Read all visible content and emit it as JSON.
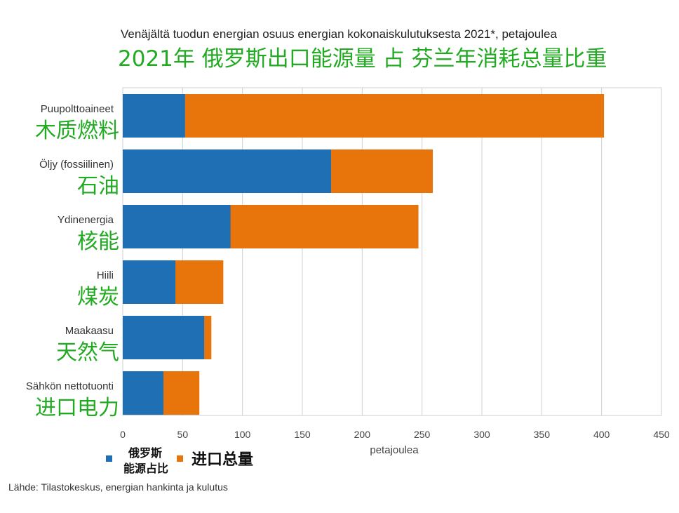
{
  "title_fi": "Venäjältä tuodun energian osuus energian kokonaiskulutuksesta  2021*, petajoulea",
  "title_zh": "2021年 俄罗斯出口能源量 占 芬兰年消耗总量比重",
  "source": "Lähde: Tilastokeskus, energian hankinta ja kulutus",
  "colors": {
    "russia": "#1f6fb4",
    "total": "#e8740c",
    "label_green": "#22aa22"
  },
  "chart_data": {
    "type": "bar",
    "orientation": "horizontal",
    "overlay": true,
    "title": "Venäjältä tuodun energian osuus energian kokonaiskulutuksesta  2021*, petajoulea",
    "xlabel": "petajoulea",
    "xlim": [
      0,
      450
    ],
    "xticks": [
      0,
      50,
      100,
      150,
      200,
      250,
      300,
      350,
      400,
      450
    ],
    "grid": true,
    "categories": [
      {
        "fi": "Puupolttoaineet",
        "zh": "木质燃料"
      },
      {
        "fi": "Öljy (fossiilinen)",
        "zh": "石油"
      },
      {
        "fi": "Ydinenergia",
        "zh": "核能"
      },
      {
        "fi": "Hiili",
        "zh": "煤炭"
      },
      {
        "fi": "Maakaasu",
        "zh": "天然气"
      },
      {
        "fi": "Sähkön nettotuonti",
        "zh": "进口电力"
      }
    ],
    "series": [
      {
        "name": "俄罗斯能源占比",
        "legend_lines": [
          "俄罗斯",
          "能源占比"
        ],
        "color": "#1f6fb4",
        "values": [
          52,
          174,
          90,
          44,
          68,
          34
        ]
      },
      {
        "name": "进口总量",
        "legend_lines": [
          "进口总量"
        ],
        "color": "#e8740c",
        "values": [
          402,
          259,
          247,
          84,
          74,
          64
        ]
      }
    ],
    "legend_position": "bottom-left"
  }
}
